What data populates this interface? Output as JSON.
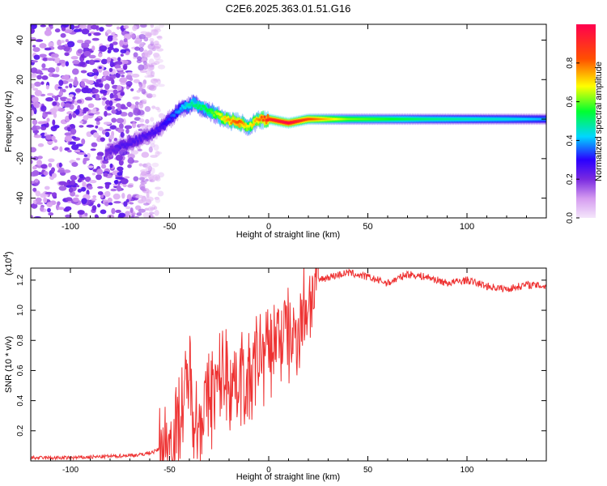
{
  "figure_title": "C2E6.2025.363.01.51.G16",
  "chart_data": [
    {
      "type": "heatmap",
      "title": "C2E6.2025.363.01.51.G16",
      "xlabel": "Height of straight line (km)",
      "ylabel": "Frequency (Hz)",
      "xlim": [
        -120,
        140
      ],
      "ylim": [
        -50,
        48
      ],
      "x_ticks": [
        -100,
        -50,
        0,
        50,
        100
      ],
      "x_tick_labels": [
        "-100",
        "-50",
        "0",
        "50",
        "100"
      ],
      "y_ticks": [
        -40,
        -20,
        0,
        20,
        40
      ],
      "y_tick_labels": [
        "-40",
        "-20",
        "0",
        "20",
        "40"
      ],
      "colorbar": {
        "label": "Normalized spectral amplitude",
        "range": [
          0,
          1
        ],
        "ticks": [
          0.0,
          0.2,
          0.4,
          0.6,
          0.8
        ],
        "tick_labels": [
          "0.0",
          "0.2",
          "0.4",
          "0.6",
          "0.8"
        ],
        "colormap": [
          "#f4e6fb",
          "#d59cf0",
          "#7a2ae0",
          "#2a00ff",
          "#00d6ff",
          "#00ff30",
          "#ffff00",
          "#ff5000",
          "#ff004e"
        ]
      },
      "ridge": {
        "x": [
          -82,
          -75,
          -65,
          -55,
          -45,
          -38,
          -30,
          -22,
          -15,
          -10,
          -5,
          0,
          10,
          20,
          40,
          80,
          120,
          140
        ],
        "freq": [
          -17,
          -14,
          -10,
          -5,
          5,
          8,
          4,
          0,
          -2,
          -4,
          0,
          0,
          -2,
          0,
          0,
          0,
          0,
          0
        ],
        "amplitude": [
          0.25,
          0.3,
          0.3,
          0.32,
          0.45,
          0.55,
          0.6,
          0.75,
          0.85,
          0.7,
          0.8,
          0.9,
          0.95,
          0.85,
          0.65,
          0.55,
          0.5,
          0.45
        ]
      },
      "noise_region": {
        "x_from": -120,
        "x_to": -60
      }
    },
    {
      "type": "line",
      "xlabel": "Height of straight line (km)",
      "ylabel": "SNR (10 * v/v)",
      "y_multiplier_label": "(x10",
      "y_multiplier_exp": "4",
      "y_multiplier_close": ")",
      "xlim": [
        -120,
        140
      ],
      "ylim": [
        0,
        1.28
      ],
      "x_ticks": [
        -100,
        -50,
        0,
        50,
        100
      ],
      "x_tick_labels": [
        "-100",
        "-50",
        "0",
        "50",
        "100"
      ],
      "y_ticks": [
        0.2,
        0.4,
        0.6,
        0.8,
        1.0,
        1.2
      ],
      "y_tick_labels": [
        "0.2",
        "0.4",
        "0.6",
        "0.8",
        "1.0",
        "1.2"
      ],
      "line_color": "#ee3333",
      "series": [
        {
          "name": "SNR",
          "x": [
            -120,
            -100,
            -80,
            -65,
            -58,
            -52,
            -48,
            -45,
            -42,
            -40,
            -38,
            -36,
            -34,
            -30,
            -26,
            -22,
            -18,
            -14,
            -10,
            -6,
            -2,
            0,
            4,
            8,
            12,
            16,
            20,
            25,
            30,
            40,
            50,
            60,
            70,
            80,
            90,
            100,
            110,
            120,
            130,
            140
          ],
          "values": [
            0.02,
            0.02,
            0.03,
            0.04,
            0.06,
            0.1,
            0.16,
            0.28,
            0.45,
            0.55,
            0.4,
            0.25,
            0.3,
            0.42,
            0.5,
            0.58,
            0.52,
            0.6,
            0.5,
            0.68,
            0.7,
            0.72,
            0.78,
            0.85,
            0.82,
            0.92,
            1.08,
            1.2,
            1.22,
            1.25,
            1.22,
            1.18,
            1.24,
            1.22,
            1.18,
            1.2,
            1.16,
            1.14,
            1.17,
            1.16
          ]
        }
      ]
    }
  ]
}
